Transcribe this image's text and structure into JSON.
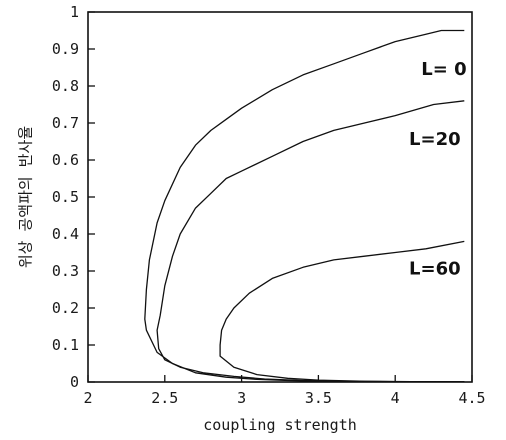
{
  "chart_data": {
    "type": "line",
    "xlabel": "coupling strength",
    "ylabel": "위상 공액파의 반사율",
    "xlim": [
      2,
      4.5
    ],
    "ylim": [
      0,
      1
    ],
    "xticks": [
      "2",
      "2.5",
      "3",
      "3.5",
      "4",
      "4.5"
    ],
    "yticks": [
      "0",
      "0.1",
      "0.2",
      "0.3",
      "0.4",
      "0.5",
      "0.6",
      "0.7",
      "0.8",
      "0.9",
      "1"
    ],
    "grid": false,
    "series": [
      {
        "name": "L= 0",
        "x": [
          4.45,
          4.3,
          4.2,
          4.0,
          3.8,
          3.6,
          3.4,
          3.2,
          3.0,
          2.9,
          2.8,
          2.7,
          2.6,
          2.5,
          2.45,
          2.4,
          2.38,
          2.37,
          2.38,
          2.45,
          2.55,
          2.7,
          2.9,
          3.1,
          3.3,
          3.5,
          3.8,
          4.1,
          4.45
        ],
        "y": [
          0.95,
          0.95,
          0.94,
          0.92,
          0.89,
          0.86,
          0.83,
          0.79,
          0.74,
          0.71,
          0.68,
          0.64,
          0.58,
          0.49,
          0.43,
          0.33,
          0.25,
          0.17,
          0.14,
          0.08,
          0.05,
          0.025,
          0.013,
          0.007,
          0.004,
          0.002,
          0.001,
          0.001,
          0.0005
        ]
      },
      {
        "name": "L=20",
        "x": [
          4.45,
          4.25,
          4.0,
          3.8,
          3.6,
          3.4,
          3.2,
          3.0,
          2.9,
          2.8,
          2.7,
          2.6,
          2.55,
          2.5,
          2.47,
          2.45,
          2.46,
          2.5,
          2.6,
          2.75,
          2.95,
          3.15,
          3.4,
          3.7,
          4.0,
          4.45
        ],
        "y": [
          0.76,
          0.75,
          0.72,
          0.7,
          0.68,
          0.65,
          0.61,
          0.57,
          0.55,
          0.51,
          0.47,
          0.4,
          0.34,
          0.26,
          0.18,
          0.14,
          0.09,
          0.06,
          0.04,
          0.025,
          0.015,
          0.008,
          0.004,
          0.002,
          0.001,
          0.0005
        ]
      },
      {
        "name": "L=60",
        "x": [
          4.45,
          4.2,
          4.0,
          3.8,
          3.6,
          3.4,
          3.2,
          3.05,
          2.95,
          2.9,
          2.87,
          2.86,
          2.86,
          2.95,
          3.1,
          3.3,
          3.5,
          3.8,
          4.1,
          4.45
        ],
        "y": [
          0.38,
          0.36,
          0.35,
          0.34,
          0.33,
          0.31,
          0.28,
          0.24,
          0.2,
          0.17,
          0.14,
          0.1,
          0.07,
          0.04,
          0.02,
          0.01,
          0.005,
          0.002,
          0.001,
          0.0005
        ]
      }
    ],
    "annotations": [
      {
        "text": "L= 0",
        "x": 4.17,
        "y": 0.83
      },
      {
        "text": "L=20",
        "x": 4.09,
        "y": 0.64
      },
      {
        "text": "L=60",
        "x": 4.09,
        "y": 0.29
      }
    ]
  }
}
